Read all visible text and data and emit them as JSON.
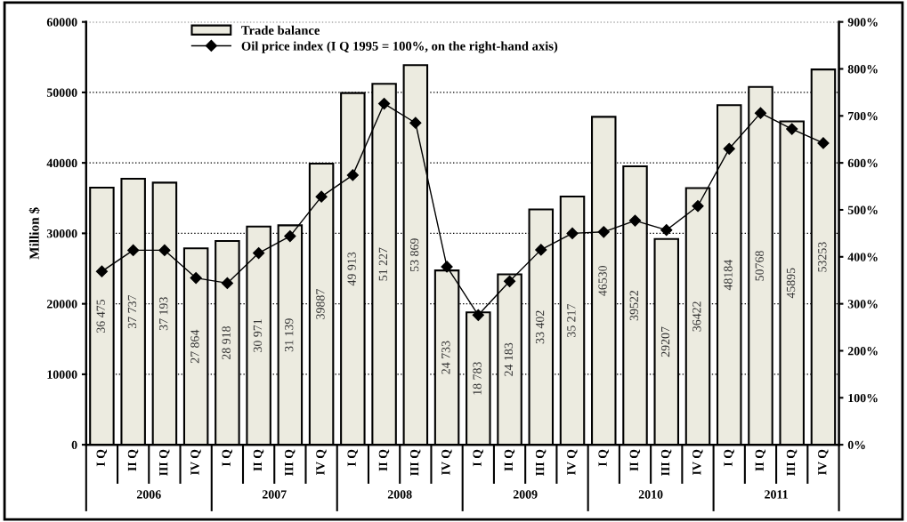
{
  "chart_data": {
    "type": "bar",
    "ylabel": "Million $",
    "categories": [
      "I Q",
      "II Q",
      "III Q",
      "IV Q",
      "I Q",
      "II Q",
      "III Q",
      "IV Q",
      "I Q",
      "II Q",
      "III Q",
      "IV Q",
      "I Q",
      "II Q",
      "III Q",
      "IV Q",
      "I Q",
      "II Q",
      "III Q",
      "IV Q",
      "I Q",
      "II Q",
      "III Q",
      "IV Q"
    ],
    "annotations": [
      "2006",
      "2007",
      "2008",
      "2009",
      "2010",
      "2011"
    ],
    "series": [
      {
        "name": "Trade balance",
        "color": "#ecebe0",
        "values": [
          36475,
          37737,
          37193,
          27864,
          28918,
          30971,
          31139,
          39887,
          49913,
          51227,
          53869,
          24733,
          18783,
          24183,
          33402,
          35217,
          46530,
          39522,
          29207,
          36422,
          48184,
          50768,
          45895,
          53253
        ],
        "value_labels": [
          "36 475",
          "37 737",
          "37 193",
          "27 864",
          "28 918",
          "30 971",
          "31 139",
          "39887",
          "49 913",
          "51 227",
          "53 869",
          "24 733",
          "18 783",
          "24 183",
          "33 402",
          "35 217",
          "46530",
          "39522",
          "29207",
          "36422",
          "48184",
          "50768",
          "45895",
          "53253"
        ]
      },
      {
        "name": "Oil price index (I Q 1995 = 100%, on the right-hand axis)",
        "type": "line",
        "axis": "y2",
        "color": "#000000",
        "marker": "diamond",
        "values": [
          369,
          414,
          414,
          355,
          344,
          408,
          444,
          528,
          574,
          726,
          685,
          379,
          276,
          348,
          415,
          450,
          453,
          477,
          457,
          508,
          630,
          706,
          672,
          642
        ]
      }
    ],
    "ylim": [
      0,
      60000
    ],
    "yticks": [
      0,
      10000,
      20000,
      30000,
      40000,
      50000,
      60000
    ],
    "y2lim": [
      0,
      900
    ],
    "y2ticks": [
      {
        "value": 0,
        "label": "0%"
      },
      {
        "value": 100,
        "label": "100%"
      },
      {
        "value": 200,
        "label": "200%"
      },
      {
        "value": 300,
        "label": "300%"
      },
      {
        "value": 400,
        "label": "400%"
      },
      {
        "value": 500,
        "label": "500%"
      },
      {
        "value": 600,
        "label": "600%"
      },
      {
        "value": 700,
        "label": "700%"
      },
      {
        "value": 800,
        "label": "800%"
      },
      {
        "value": 900,
        "label": "900%"
      }
    ],
    "grid": "y",
    "legend": "top left"
  }
}
